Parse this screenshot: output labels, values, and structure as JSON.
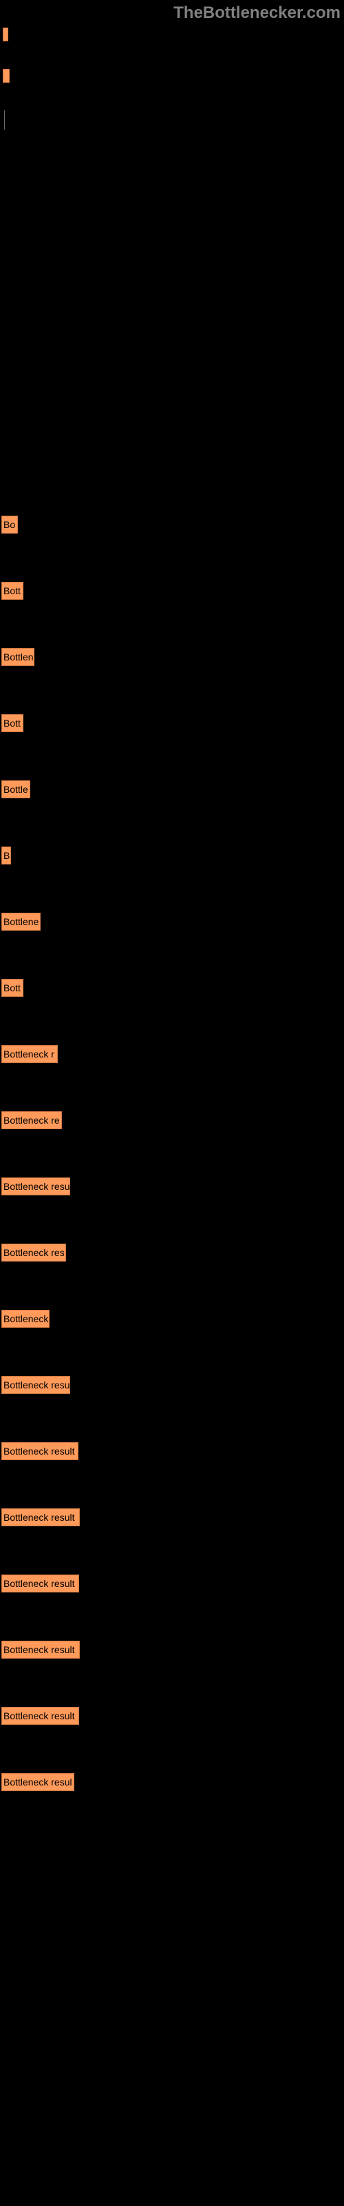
{
  "watermark": "TheBottlenecker.com",
  "top_boxes": [
    {
      "width": 8,
      "height": 20
    },
    {
      "width": 10,
      "height": 20
    }
  ],
  "chart": {
    "type": "bar",
    "bar_color": "#ff9a5a",
    "border_color": "#d07840",
    "text_color": "#000000",
    "background_color": "#000000",
    "label_fontsize": 14,
    "bars": [
      {
        "label": "Bo",
        "width": 24
      },
      {
        "label": "Bott",
        "width": 32
      },
      {
        "label": "Bottlen",
        "width": 48
      },
      {
        "label": "Bott",
        "width": 32
      },
      {
        "label": "Bottle",
        "width": 42
      },
      {
        "label": "B",
        "width": 14
      },
      {
        "label": "Bottlene",
        "width": 57
      },
      {
        "label": "Bott",
        "width": 32
      },
      {
        "label": "Bottleneck r",
        "width": 82
      },
      {
        "label": "Bottleneck re",
        "width": 88
      },
      {
        "label": "Bottleneck resu",
        "width": 100
      },
      {
        "label": "Bottleneck res",
        "width": 94
      },
      {
        "label": "Bottleneck",
        "width": 70
      },
      {
        "label": "Bottleneck resu",
        "width": 100
      },
      {
        "label": "Bottleneck result",
        "width": 112
      },
      {
        "label": "Bottleneck result",
        "width": 114
      },
      {
        "label": "Bottleneck result",
        "width": 113
      },
      {
        "label": "Bottleneck result",
        "width": 114
      },
      {
        "label": "Bottleneck result",
        "width": 113
      },
      {
        "label": "Bottleneck resul",
        "width": 106
      }
    ]
  }
}
